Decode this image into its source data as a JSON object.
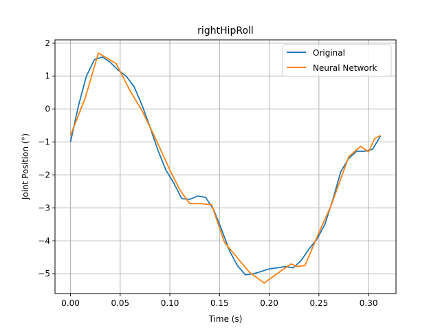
{
  "chart_data": {
    "type": "line",
    "title": "rightHipRoll",
    "xlabel": "Time (s)",
    "ylabel": "Joint Position (°)",
    "xlim": [
      -0.0156,
      0.3276
    ],
    "ylim": [
      -5.6,
      2.1
    ],
    "xticks": [
      0.0,
      0.05,
      0.1,
      0.15,
      0.2,
      0.25,
      0.3
    ],
    "xtick_labels": [
      "0.00",
      "0.05",
      "0.10",
      "0.15",
      "0.20",
      "0.25",
      "0.30"
    ],
    "yticks": [
      -5,
      -4,
      -3,
      -2,
      -1,
      0,
      1,
      2
    ],
    "ytick_labels": [
      "−5",
      "−4",
      "−3",
      "−2",
      "−1",
      "0",
      "1",
      "2"
    ],
    "grid": true,
    "legend_position": "top-right",
    "series": [
      {
        "name": "Original",
        "color": "#1f77b4",
        "x": [
          0.0,
          0.008,
          0.016,
          0.024,
          0.032,
          0.04,
          0.048,
          0.056,
          0.064,
          0.072,
          0.08,
          0.088,
          0.096,
          0.104,
          0.112,
          0.12,
          0.128,
          0.136,
          0.144,
          0.152,
          0.16,
          0.168,
          0.176,
          0.184,
          0.192,
          0.2,
          0.208,
          0.216,
          0.224,
          0.232,
          0.24,
          0.248,
          0.256,
          0.264,
          0.272,
          0.28,
          0.288,
          0.296,
          0.304,
          0.312
        ],
        "y": [
          -1.0,
          0.1,
          1.0,
          1.5,
          1.58,
          1.42,
          1.18,
          1.0,
          0.68,
          0.12,
          -0.55,
          -1.25,
          -1.85,
          -2.25,
          -2.72,
          -2.74,
          -2.64,
          -2.68,
          -3.05,
          -3.65,
          -4.3,
          -4.75,
          -5.03,
          -5.0,
          -4.93,
          -4.85,
          -4.82,
          -4.78,
          -4.82,
          -4.6,
          -4.25,
          -3.95,
          -3.5,
          -2.75,
          -1.9,
          -1.5,
          -1.28,
          -1.28,
          -1.22,
          -0.82
        ]
      },
      {
        "name": "Neural Network",
        "color": "#ff7f0e",
        "x": [
          0.0,
          0.015,
          0.028,
          0.046,
          0.06,
          0.072,
          0.088,
          0.1,
          0.11,
          0.12,
          0.13,
          0.142,
          0.155,
          0.18,
          0.195,
          0.21,
          0.222,
          0.228,
          0.236,
          0.25,
          0.262,
          0.28,
          0.292,
          0.3,
          0.306,
          0.312
        ],
        "y": [
          -0.8,
          0.35,
          1.7,
          1.38,
          0.55,
          -0.05,
          -1.05,
          -1.85,
          -2.45,
          -2.87,
          -2.87,
          -2.9,
          -4.05,
          -4.95,
          -5.28,
          -4.95,
          -4.7,
          -4.78,
          -4.75,
          -3.75,
          -2.95,
          -1.45,
          -1.13,
          -1.3,
          -0.9,
          -0.8
        ]
      }
    ]
  }
}
